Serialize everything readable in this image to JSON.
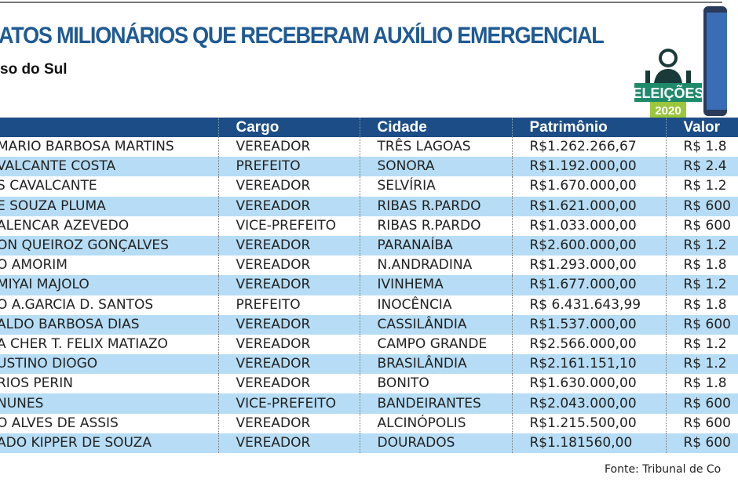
{
  "header": {
    "title": "ATOS MILIONÁRIOS QUE RECEBERAM AUXÍLIO EMERGENCIAL",
    "subtitle": "so do Sul",
    "badge_label": "ELEIÇÕES",
    "badge_year": "2020"
  },
  "table": {
    "columns": [
      "",
      "Cargo",
      "Cidade",
      "Patrimônio",
      "Valor"
    ],
    "rows": [
      [
        "MARIO BARBOSA MARTINS",
        "VEREADOR",
        "TRÊS LAGOAS",
        "R$1.262.266,67",
        "R$ 1.8"
      ],
      [
        "VALCANTE COSTA",
        "PREFEITO",
        "SONORA",
        "R$1.192.000,00",
        "R$ 2.4"
      ],
      [
        "S CAVALCANTE",
        "VEREADOR",
        "SELVÍRIA",
        "R$1.670.000,00",
        "R$ 1.2"
      ],
      [
        "E SOUZA PLUMA",
        "VEREADOR",
        "RIBAS R.PARDO",
        "R$1.621.000,00",
        "R$ 600"
      ],
      [
        "ALENCAR AZEVEDO",
        "VICE-PREFEITO",
        "RIBAS R.PARDO",
        "R$1.033.000,00",
        "R$ 600"
      ],
      [
        "ON QUEIROZ GONÇALVES",
        "VEREADOR",
        "PARANAÍBA",
        "R$2.600.000,00",
        "R$ 1.2"
      ],
      [
        "O AMORIM",
        "VEREADOR",
        "N.ANDRADINA",
        "R$1.293.000,00",
        "R$ 1.8"
      ],
      [
        "MIYAI MAJOLO",
        "VEREADOR",
        "IVINHEMA",
        "R$1.677.000,00",
        "R$ 1.2"
      ],
      [
        "O A.GARCIA D. SANTOS",
        "PREFEITO",
        "INOCÊNCIA",
        "R$ 6.431.643,99",
        "R$ 1.8"
      ],
      [
        "ALDO BARBOSA DIAS",
        "VEREADOR",
        "CASSILÂNDIA",
        "R$1.537.000,00",
        "R$ 600"
      ],
      [
        "A CHER T. FELIX MATIAZO",
        "VEREADOR",
        "CAMPO GRANDE",
        "R$2.566.000,00",
        "R$ 1.2"
      ],
      [
        "USTINO DIOGO",
        "VEREADOR",
        "BRASILÂNDIA",
        "R$2.161.151,10",
        "R$ 1.2"
      ],
      [
        "RIOS PERIN",
        "VEREADOR",
        "BONITO",
        "R$1.630.000,00",
        "R$ 1.8"
      ],
      [
        "NUNES",
        "VICE-PREFEITO",
        "BANDEIRANTES",
        "R$2.043.000,00",
        "R$ 600"
      ],
      [
        "O ALVES DE ASSIS",
        "VEREADOR",
        "ALCINÓPOLIS",
        "R$1.215.500,00",
        "R$ 600"
      ],
      [
        "ADO KIPPER DE SOUZA",
        "VEREADOR",
        "DOURADOS",
        "R$1.181560,00",
        "R$ 600"
      ]
    ]
  },
  "footer": {
    "source": "Fonte: Tribunal de Co"
  },
  "colors": {
    "title": "#1f5a93",
    "header_bg": "#1d4d86",
    "stripe": "#b6ddf5",
    "badge": "#1e8a6a",
    "badge_year": "#9cc63b"
  }
}
